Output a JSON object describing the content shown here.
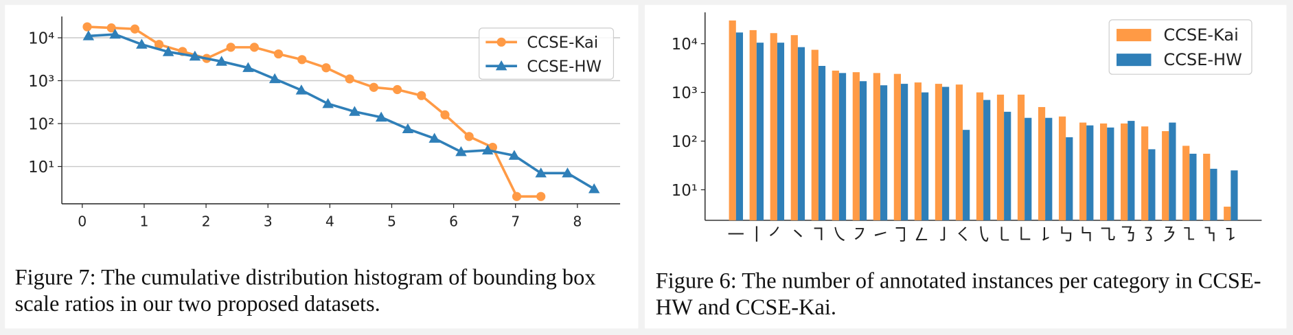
{
  "chart_data": [
    {
      "type": "line",
      "caption": "Figure 7: The cumulative distribution histogram of bounding box scale ratios in our two proposed datasets.",
      "xlim": [
        -0.33,
        8.69
      ],
      "xticks": [
        0,
        1,
        2,
        3,
        4,
        5,
        6,
        7,
        8
      ],
      "ylim": [
        1.35,
        24000
      ],
      "log_y": true,
      "grid": true,
      "legend": "upper right",
      "yticks": [
        {
          "value": 10,
          "label": "10¹"
        },
        {
          "value": 100,
          "label": "10²"
        },
        {
          "value": 1000,
          "label": "10³"
        },
        {
          "value": 10000,
          "label": "10⁴"
        }
      ],
      "series": [
        {
          "name": "CCSE-Kai",
          "color": "#ff9a45",
          "marker": "circle",
          "x": [
            0.08,
            0.47,
            0.85,
            1.24,
            1.62,
            2.01,
            2.4,
            2.78,
            3.17,
            3.55,
            3.94,
            4.32,
            4.71,
            5.09,
            5.48,
            5.86,
            6.25,
            6.63,
            7.02,
            7.41
          ],
          "values": [
            18000,
            17000,
            16000,
            7000,
            4800,
            3300,
            6000,
            6000,
            4200,
            3100,
            2000,
            1100,
            700,
            620,
            450,
            160,
            50,
            28,
            2,
            2
          ]
        },
        {
          "name": "CCSE-HW",
          "color": "#2f7fb8",
          "marker": "triangle",
          "x": [
            0.1,
            0.53,
            0.96,
            1.39,
            1.82,
            2.25,
            2.68,
            3.11,
            3.54,
            3.97,
            4.4,
            4.83,
            5.26,
            5.69,
            6.12,
            6.55,
            6.98,
            7.41,
            7.84,
            8.27
          ],
          "values": [
            11000,
            12000,
            7000,
            4700,
            3700,
            2800,
            2000,
            1100,
            600,
            290,
            190,
            140,
            75,
            45,
            22,
            24,
            18,
            7,
            7,
            3
          ]
        }
      ]
    },
    {
      "type": "bar",
      "caption": "Figure 6: The number of annotated instances per category in CCSE-HW and CCSE-Kai.",
      "ylim": [
        2.36,
        44000
      ],
      "log_y": true,
      "grid": false,
      "legend": "upper right",
      "yticks": [
        {
          "value": 10,
          "label": "10¹"
        },
        {
          "value": 100,
          "label": "10²"
        },
        {
          "value": 1000,
          "label": "10³"
        },
        {
          "value": 10000,
          "label": "10⁴"
        }
      ],
      "categories": [
        "㇐",
        "㇑",
        "㇒",
        "㇔",
        "㇕",
        "㇏",
        "㇇",
        "㇀",
        "㇆",
        "㇜",
        "㇚",
        "㇛",
        "㇂",
        "㇄",
        "㇗",
        "㇙",
        "㇉",
        "㇞",
        "㇈",
        "㇡",
        "㇌",
        "㇋",
        "㇅",
        "㇎",
        "㇊"
      ],
      "series": [
        {
          "name": "CCSE-Kai",
          "color": "#ff9a45",
          "values": [
            30000,
            19000,
            16500,
            15000,
            7500,
            2800,
            2600,
            2500,
            2400,
            1600,
            1500,
            1450,
            1000,
            900,
            900,
            500,
            320,
            240,
            230,
            230,
            200,
            160,
            80,
            55,
            4.5
          ]
        },
        {
          "name": "CCSE-HW",
          "color": "#2f7fb8",
          "values": [
            17000,
            10500,
            10500,
            8500,
            3500,
            2500,
            1700,
            1400,
            1500,
            1000,
            1300,
            170,
            700,
            400,
            300,
            300,
            120,
            210,
            190,
            260,
            68,
            240,
            55,
            27,
            25
          ]
        }
      ]
    }
  ]
}
